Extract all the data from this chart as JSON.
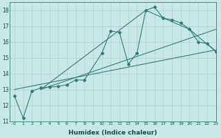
{
  "xlabel": "Humidex (Indice chaleur)",
  "bg_color": "#c8e8e8",
  "grid_color": "#b0d0d0",
  "line_color": "#2e7d72",
  "xlim": [
    -0.5,
    23
  ],
  "ylim": [
    11,
    18.5
  ],
  "xticks": [
    0,
    1,
    2,
    3,
    4,
    5,
    6,
    7,
    8,
    9,
    10,
    11,
    12,
    13,
    14,
    15,
    16,
    17,
    18,
    19,
    20,
    21,
    22,
    23
  ],
  "yticks": [
    11,
    12,
    13,
    14,
    15,
    16,
    17,
    18
  ],
  "series": [
    {
      "x": [
        0,
        1,
        2,
        3,
        4,
        5,
        6,
        7,
        8,
        10,
        11,
        12,
        13,
        14,
        15,
        16,
        17,
        18,
        19,
        20,
        21,
        22,
        23
      ],
      "y": [
        12.6,
        11.2,
        12.9,
        13.1,
        13.15,
        13.2,
        13.3,
        13.6,
        13.6,
        15.3,
        16.7,
        16.6,
        14.6,
        15.3,
        18.0,
        18.2,
        17.5,
        17.4,
        17.2,
        16.8,
        16.0,
        15.9,
        15.4
      ],
      "marker": true
    },
    {
      "x": [
        0,
        23
      ],
      "y": [
        13.0,
        15.5
      ],
      "marker": false
    },
    {
      "x": [
        3,
        23
      ],
      "y": [
        13.0,
        16.8
      ],
      "marker": false
    },
    {
      "x": [
        3,
        15,
        20,
        23
      ],
      "y": [
        13.0,
        18.0,
        16.8,
        15.4
      ],
      "marker": false
    }
  ]
}
